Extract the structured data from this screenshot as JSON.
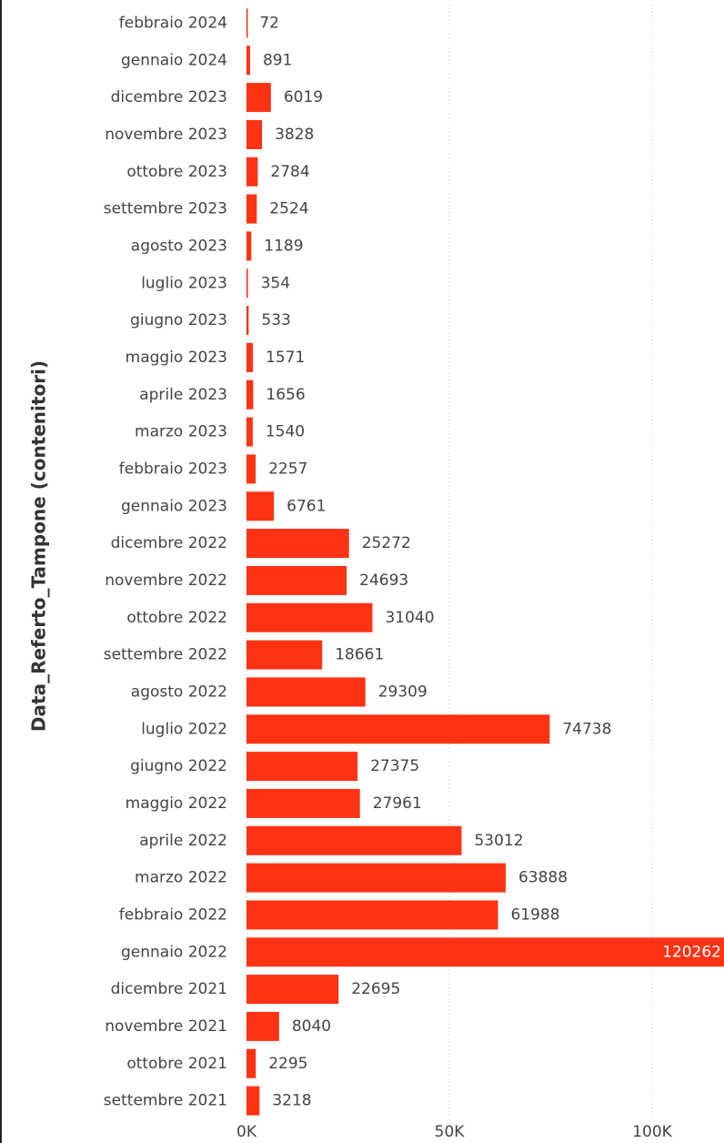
{
  "chart_data": {
    "type": "bar",
    "orientation": "horizontal",
    "y_axis_title": "Data_Referto_Tampone (contenitori)",
    "categories": [
      "febbraio 2024",
      "gennaio 2024",
      "dicembre 2023",
      "novembre 2023",
      "ottobre 2023",
      "settembre 2023",
      "agosto 2023",
      "luglio 2023",
      "giugno 2023",
      "maggio 2023",
      "aprile 2023",
      "marzo 2023",
      "febbraio 2023",
      "gennaio 2023",
      "dicembre 2022",
      "novembre 2022",
      "ottobre 2022",
      "settembre 2022",
      "agosto 2022",
      "luglio 2022",
      "giugno 2022",
      "maggio 2022",
      "aprile 2022",
      "marzo 2022",
      "febbraio 2022",
      "gennaio 2022",
      "dicembre 2021",
      "novembre 2021",
      "ottobre 2021",
      "settembre 2021"
    ],
    "values": [
      72,
      891,
      6019,
      3828,
      2784,
      2524,
      1189,
      354,
      533,
      1571,
      1656,
      1540,
      2257,
      6761,
      25272,
      24693,
      31040,
      18661,
      29309,
      74738,
      27375,
      27961,
      53012,
      63888,
      61988,
      120262,
      22695,
      8040,
      2295,
      3218
    ],
    "color": "#ff3314",
    "xlim": [
      0,
      117700
    ],
    "xticks": [
      {
        "value": 0,
        "label": "0K"
      },
      {
        "value": 50000,
        "label": "50K"
      },
      {
        "value": 100000,
        "label": "100K"
      }
    ],
    "grid": true
  }
}
